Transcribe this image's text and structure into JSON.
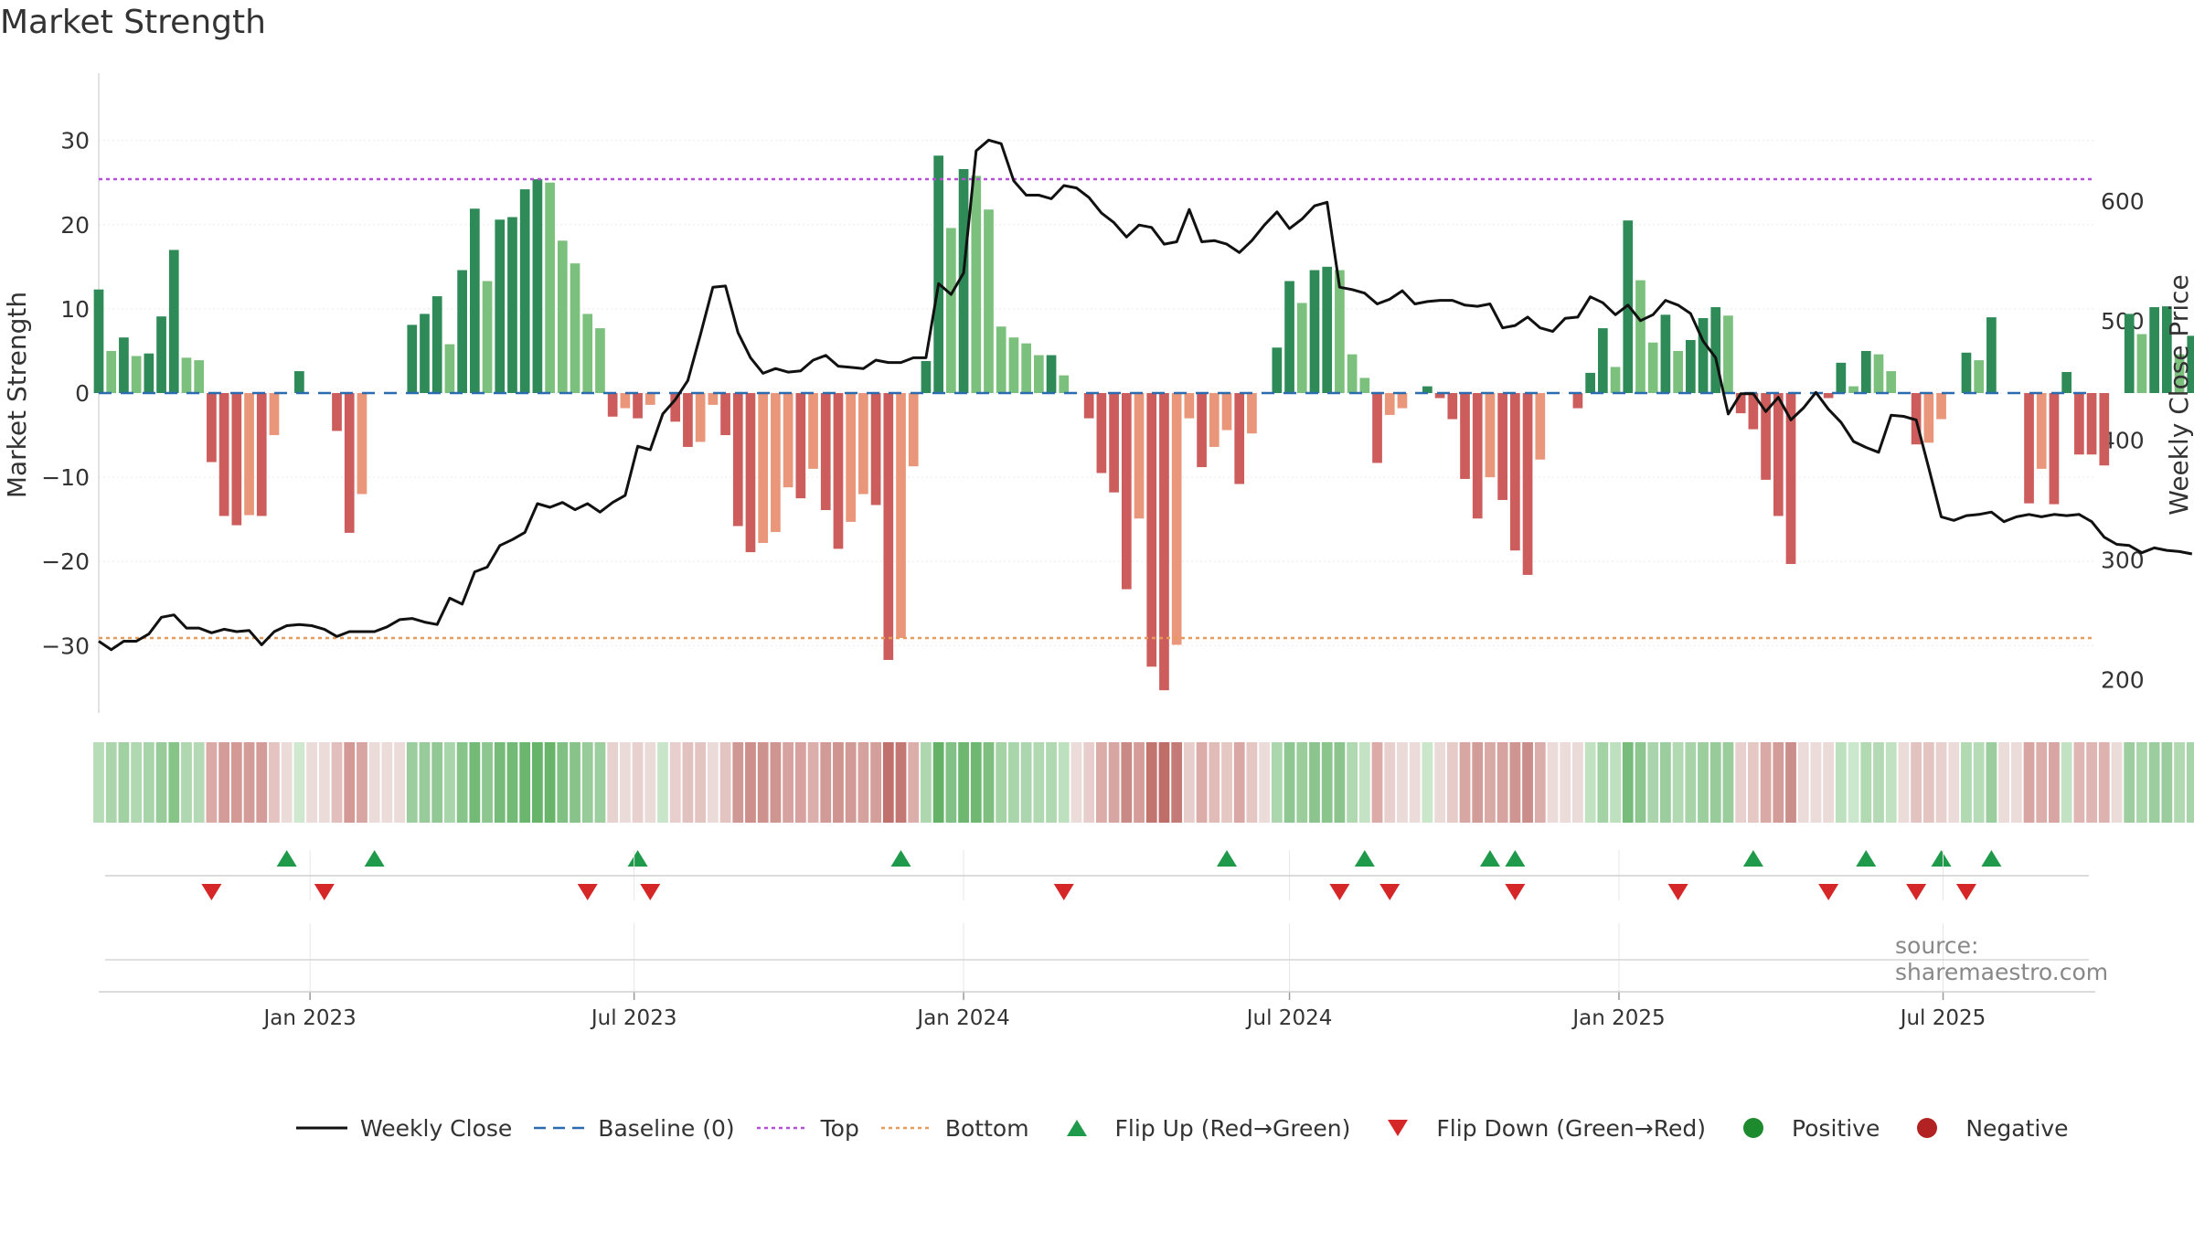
{
  "title": "Market Strength",
  "source": "source: sharemaestro.com",
  "colors": {
    "close": "#111111",
    "baseline": "#2b6cb0",
    "top": "#b44fd6",
    "bottom": "#e59a5a",
    "flip_up": "#1f9a4a",
    "flip_down": "#d62728",
    "positive": "#1e8a2e",
    "negative": "#b22222",
    "pos_strong": "#2e8b57",
    "pos_light": "#7cc07e",
    "neg_strong": "#cd5c5c",
    "neg_light": "#e9967a"
  },
  "legend": [
    {
      "key": "close",
      "label": "Weekly Close",
      "symbol": "line"
    },
    {
      "key": "baseline",
      "label": "Baseline (0)",
      "symbol": "dash"
    },
    {
      "key": "top",
      "label": "Top",
      "symbol": "dot"
    },
    {
      "key": "bottom",
      "label": "Bottom",
      "symbol": "dot"
    },
    {
      "key": "flip_up",
      "label": "Flip Up (Red→Green)",
      "symbol": "tri-up"
    },
    {
      "key": "flip_down",
      "label": "Flip Down (Green→Red)",
      "symbol": "tri-down"
    },
    {
      "key": "positive",
      "label": "Positive",
      "symbol": "circle"
    },
    {
      "key": "negative",
      "label": "Negative",
      "symbol": "circle"
    }
  ],
  "chart_data": {
    "type": "bar",
    "title": "Market Strength",
    "ylabel": "Market Strength",
    "y2label": "Weekly Close Price",
    "ylim": [
      -38,
      38
    ],
    "y2lim": [
      172,
      707
    ],
    "yticks": [
      30,
      20,
      10,
      0,
      -10,
      -20,
      -30
    ],
    "y2ticks": [
      600,
      500,
      400,
      300,
      200
    ],
    "xlim": [
      "2022-09-05",
      "2025-09-24"
    ],
    "xticks": [
      {
        "date": "2023-01-01",
        "label": "Jan 2023"
      },
      {
        "date": "2023-07-01",
        "label": "Jul 2023"
      },
      {
        "date": "2024-01-01",
        "label": "Jan 2024"
      },
      {
        "date": "2024-07-01",
        "label": "Jul 2024"
      },
      {
        "date": "2025-01-01",
        "label": "Jan 2025"
      },
      {
        "date": "2025-07-01",
        "label": "Jul 2025"
      }
    ],
    "top_line": 25.4,
    "bottom_line": -29.1,
    "baseline": 0,
    "start_week": "2022-09-05",
    "week_step_days": 7,
    "strength": [
      12.3,
      5,
      6.6,
      4.4,
      4.7,
      9.1,
      17,
      4.2,
      3.9,
      -8.2,
      -14.6,
      -15.7,
      -14.5,
      -14.6,
      -5,
      0,
      2.6,
      0,
      0,
      -4.5,
      -16.6,
      -12,
      0,
      0,
      0,
      8.1,
      9.4,
      11.5,
      5.8,
      14.6,
      21.9,
      13.3,
      20.6,
      20.9,
      24.2,
      25.4,
      25,
      18.1,
      15.4,
      9.4,
      7.7,
      -2.8,
      -1.8,
      -3,
      -1.4,
      0,
      -3.4,
      -6.4,
      -5.8,
      -1.4,
      -5,
      -15.8,
      -18.9,
      -17.8,
      -16.5,
      -11.2,
      -12.5,
      -9,
      -13.9,
      -18.5,
      -15.3,
      -12,
      -13.3,
      -31.7,
      -29.1,
      -8.7,
      3.8,
      28.2,
      19.6,
      26.6,
      25.8,
      21.8,
      7.9,
      6.6,
      5.9,
      4.5,
      4.5,
      2.1,
      0,
      -3,
      -9.5,
      -11.8,
      -23.3,
      -14.9,
      -32.5,
      -35.3,
      -29.9,
      -3,
      -8.8,
      -6.4,
      -4.4,
      -10.8,
      -4.8,
      0,
      5.4,
      13.3,
      10.7,
      14.6,
      15,
      14.6,
      4.6,
      1.8,
      -8.3,
      -2.6,
      -1.8,
      0,
      0.8,
      -0.6,
      -3.1,
      -10.2,
      -14.9,
      -10,
      -12.7,
      -18.7,
      -21.6,
      -7.9,
      0,
      0,
      -1.8,
      2.4,
      7.7,
      3.1,
      20.5,
      13.4,
      6,
      9.3,
      5,
      6.3,
      8.9,
      10.2,
      9.2,
      -2.4,
      -4.3,
      -10.3,
      -14.6,
      -20.3,
      0,
      0,
      -0.6,
      3.6,
      0.8,
      5,
      4.6,
      2.6,
      0,
      -6.1,
      -5.9,
      -3.1,
      0,
      4.8,
      3.9,
      9,
      0,
      0,
      -13.1,
      -9,
      -13.2,
      2.5,
      -7.3,
      -7.3,
      -8.6,
      0,
      9.4,
      7,
      10.2,
      10.3,
      4.6,
      6.8
    ],
    "close": [
      232,
      225,
      232,
      232,
      238,
      252,
      254,
      243,
      243,
      239,
      242,
      240,
      241,
      229,
      240,
      245,
      246,
      245,
      242,
      236,
      240,
      240,
      240,
      244,
      250,
      251,
      248,
      246,
      268,
      263,
      290,
      294,
      312,
      317,
      323,
      347,
      344,
      348,
      342,
      347,
      340,
      348,
      354,
      395,
      392,
      422,
      434,
      450,
      488,
      528,
      529,
      490,
      469,
      456,
      460,
      457,
      458,
      467,
      471,
      462,
      461,
      460,
      467,
      465,
      465,
      469,
      469,
      531,
      522,
      540,
      642,
      651,
      648,
      617,
      605,
      605,
      602,
      613,
      611,
      603,
      590,
      582,
      570,
      580,
      578,
      564,
      566,
      593,
      566,
      567,
      564,
      557,
      567,
      580,
      591,
      577,
      585,
      596,
      599,
      528,
      526,
      523,
      514,
      518,
      525,
      514,
      516,
      517,
      517,
      513,
      512,
      514,
      494,
      496,
      503,
      494,
      491,
      502,
      503,
      520,
      515,
      505,
      513,
      500,
      505,
      517,
      513,
      506,
      483,
      469,
      422,
      439,
      439,
      424,
      436,
      417,
      427,
      440,
      426,
      415,
      399,
      394,
      390,
      421,
      420,
      417,
      377,
      336,
      333,
      337,
      338,
      340,
      332,
      336,
      338,
      336,
      338,
      337,
      338,
      332,
      319,
      313,
      312,
      306,
      310,
      308,
      307,
      305
    ],
    "flips_up": [
      15,
      22,
      43,
      64,
      90,
      101,
      111,
      113,
      132,
      141,
      147,
      151
    ],
    "flips_down": [
      9,
      18,
      39,
      44,
      77,
      99,
      103,
      113,
      126,
      138,
      145,
      149
    ],
    "strip_colors": [
      "#b6ddb7",
      "#abd6ac",
      "#a1d1a2",
      "#b0d9b2",
      "#a7d4a8",
      "#97cb99",
      "#87c488",
      "#afd7b0",
      "#b3dab4",
      "#dcaaa6",
      "#d49c98",
      "#d39995",
      "#d49c98",
      "#d49c98",
      "#e4c3c0",
      "#ebdcda",
      "#cfe8cf",
      "#ebdcda",
      "#ebdcda",
      "#e2bfbc",
      "#d49995",
      "#d8a6a2",
      "#ebdcda",
      "#ebdcda",
      "#ebdcda",
      "#9ccd9e",
      "#98cb9a",
      "#92c894",
      "#a9d5ab",
      "#87c489",
      "#74ba77",
      "#8dc68f",
      "#76bb79",
      "#74ba77",
      "#6bb66e",
      "#66b36a",
      "#68b46b",
      "#80c082",
      "#88c48a",
      "#98cb9a",
      "#9dce9f",
      "#e8d2d0",
      "#eadad8",
      "#e8d0ce",
      "#eadbd9",
      "#c8e5c9",
      "#e8cecc",
      "#e2c2bf",
      "#e3c4c1",
      "#eadbd9",
      "#e3c4c1",
      "#d09894",
      "#cd8f8b",
      "#ce928e",
      "#cf9591",
      "#d7a3a0",
      "#d6a19e",
      "#dbaeab",
      "#d29a96",
      "#cf9490",
      "#d29a96",
      "#d6a29e",
      "#d49e9a",
      "#c0716d",
      "#c47874",
      "#dcaeab",
      "#aed7af",
      "#64b268",
      "#82c185",
      "#6db771",
      "#6fb872",
      "#7ebf80",
      "#a5d3a6",
      "#a9d5ab",
      "#acd6ad",
      "#b0d9b2",
      "#b0d9b2",
      "#bde0be",
      "#ebdcda",
      "#e7cecc",
      "#dcaca9",
      "#d8a6a2",
      "#c98985",
      "#d49d99",
      "#c2746f",
      "#be6d69",
      "#c47a76",
      "#e7cecc",
      "#dcaca9",
      "#e1bbb8",
      "#e5c7c4",
      "#d9a7a4",
      "#e5c6c3",
      "#ebdcda",
      "#acd6ad",
      "#8ec791",
      "#9acc9c",
      "#8bc58d",
      "#8ac58c",
      "#8bc58d",
      "#b0d9b2",
      "#c3e3c4",
      "#dcaba8",
      "#e8d0ce",
      "#eadad8",
      "#ebdcda",
      "#cae7cb",
      "#eadbd9",
      "#e6cbc8",
      "#d8a7a4",
      "#d29c98",
      "#d9a9a6",
      "#d6a3a0",
      "#cf9590",
      "#ca8d89",
      "#dcaeab",
      "#ebdcda",
      "#ebdcda",
      "#eadad8",
      "#c0e2c1",
      "#a3d2a5",
      "#bde0be",
      "#77bc7a",
      "#8dc68f",
      "#aad5ac",
      "#9ccd9e",
      "#b1d9b2",
      "#a8d4aa",
      "#9cce9e",
      "#97cb99",
      "#9acc9c",
      "#e8d0ce",
      "#e5c7c4",
      "#d9a9a6",
      "#d49c98",
      "#cb8f8b",
      "#ebdcda",
      "#ebdcda",
      "#eadad8",
      "#bde0be",
      "#cbe7cc",
      "#b1d9b2",
      "#b3dab4",
      "#c0e2c1",
      "#ebdcda",
      "#e3c3c0",
      "#e3c4c1",
      "#e8d0ce",
      "#ebdcda",
      "#b1d9b2",
      "#b6dcb7",
      "#9ccd9e",
      "#ebdcda",
      "#ebdcda",
      "#d8a5a2",
      "#dcaeab",
      "#d8a5a2",
      "#c2e2c3",
      "#dfb6b3",
      "#dfb6b3",
      "#ddb2af",
      "#ebdcda",
      "#9ecea0",
      "#a9d5ab",
      "#9ccd9e",
      "#9bcc9d",
      "#b0d9b2",
      "#a7d4a8"
    ]
  }
}
